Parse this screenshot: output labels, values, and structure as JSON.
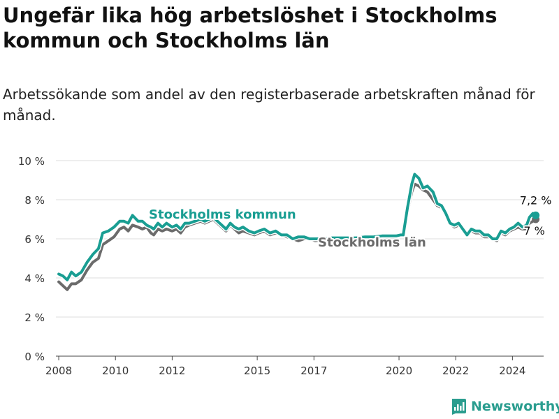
{
  "header": {
    "title": "Ungefär lika hög arbetslöshet i Stockholms kommun och Stockholms län",
    "subtitle": "Arbetssökande som andel av den registerbaserade arbetskraften månad för månad."
  },
  "brand": {
    "name": "Newsworthy"
  },
  "colors": {
    "kommun": "#1a9e93",
    "lan": "#6b6b6b",
    "axis": "#444444",
    "grid": "#dddddd"
  },
  "chart_data": {
    "type": "line",
    "title": "Ungefär lika hög arbetslöshet i Stockholms kommun och Stockholms län",
    "xlabel": "",
    "ylabel": "",
    "xlim": [
      2007.9,
      2025.1
    ],
    "ylim": [
      0,
      10
    ],
    "y_ticks": [
      {
        "value": 0,
        "label": "0 %"
      },
      {
        "value": 2,
        "label": "2 %"
      },
      {
        "value": 4,
        "label": "4 %"
      },
      {
        "value": 6,
        "label": "6 %"
      },
      {
        "value": 8,
        "label": "8 %"
      },
      {
        "value": 10,
        "label": "10 %"
      }
    ],
    "x_ticks": [
      {
        "value": 2008,
        "label": "2008"
      },
      {
        "value": 2010,
        "label": "2010"
      },
      {
        "value": 2012,
        "label": "2012"
      },
      {
        "value": 2015,
        "label": "2015"
      },
      {
        "value": 2017,
        "label": "2017"
      },
      {
        "value": 2020,
        "label": "2020"
      },
      {
        "value": 2022,
        "label": "2022"
      },
      {
        "value": 2024,
        "label": "2024"
      }
    ],
    "grid": "horizontal",
    "series": [
      {
        "name": "Stockholms län",
        "label": "Stockholms län",
        "end_label": "7 %",
        "color": "#6b6b6b",
        "points": [
          [
            2008.0,
            3.8
          ],
          [
            2008.15,
            3.6
          ],
          [
            2008.3,
            3.4
          ],
          [
            2008.45,
            3.7
          ],
          [
            2008.6,
            3.7
          ],
          [
            2008.8,
            3.9
          ],
          [
            2009.0,
            4.4
          ],
          [
            2009.2,
            4.8
          ],
          [
            2009.4,
            5.0
          ],
          [
            2009.55,
            5.7
          ],
          [
            2009.75,
            5.9
          ],
          [
            2009.95,
            6.1
          ],
          [
            2010.15,
            6.5
          ],
          [
            2010.3,
            6.6
          ],
          [
            2010.45,
            6.4
          ],
          [
            2010.6,
            6.7
          ],
          [
            2010.8,
            6.6
          ],
          [
            2010.95,
            6.5
          ],
          [
            2011.1,
            6.6
          ],
          [
            2011.25,
            6.3
          ],
          [
            2011.35,
            6.2
          ],
          [
            2011.5,
            6.5
          ],
          [
            2011.65,
            6.4
          ],
          [
            2011.8,
            6.5
          ],
          [
            2012.0,
            6.4
          ],
          [
            2012.15,
            6.5
          ],
          [
            2012.3,
            6.3
          ],
          [
            2012.45,
            6.6
          ],
          [
            2012.6,
            6.7
          ],
          [
            2012.8,
            6.8
          ],
          [
            2013.0,
            6.9
          ],
          [
            2013.15,
            6.8
          ],
          [
            2013.3,
            6.9
          ],
          [
            2013.45,
            7.0
          ],
          [
            2013.6,
            6.8
          ],
          [
            2013.75,
            6.6
          ],
          [
            2013.9,
            6.4
          ],
          [
            2014.05,
            6.7
          ],
          [
            2014.2,
            6.5
          ],
          [
            2014.35,
            6.3
          ],
          [
            2014.5,
            6.4
          ],
          [
            2014.7,
            6.3
          ],
          [
            2014.9,
            6.2
          ],
          [
            2015.05,
            6.3
          ],
          [
            2015.25,
            6.4
          ],
          [
            2015.45,
            6.2
          ],
          [
            2015.65,
            6.3
          ],
          [
            2015.85,
            6.2
          ],
          [
            2016.05,
            6.1
          ],
          [
            2016.25,
            6.0
          ],
          [
            2016.45,
            5.9
          ],
          [
            2016.65,
            6.0
          ],
          [
            2016.85,
            6.0
          ],
          [
            2017.05,
            5.9
          ],
          [
            2017.3,
            5.95
          ],
          [
            2017.6,
            6.0
          ],
          [
            2017.9,
            6.0
          ],
          [
            2018.2,
            6.0
          ],
          [
            2018.5,
            6.0
          ],
          [
            2018.8,
            6.05
          ],
          [
            2019.1,
            6.05
          ],
          [
            2019.4,
            6.1
          ],
          [
            2019.7,
            6.1
          ],
          [
            2019.9,
            6.1
          ],
          [
            2020.05,
            6.2
          ],
          [
            2020.15,
            6.2
          ],
          [
            2020.3,
            7.4
          ],
          [
            2020.45,
            8.4
          ],
          [
            2020.55,
            8.8
          ],
          [
            2020.7,
            8.7
          ],
          [
            2020.85,
            8.5
          ],
          [
            2021.0,
            8.4
          ],
          [
            2021.2,
            8.0
          ],
          [
            2021.35,
            7.7
          ],
          [
            2021.5,
            7.6
          ],
          [
            2021.65,
            7.2
          ],
          [
            2021.8,
            6.8
          ],
          [
            2021.95,
            6.6
          ],
          [
            2022.1,
            6.7
          ],
          [
            2022.25,
            6.5
          ],
          [
            2022.4,
            6.3
          ],
          [
            2022.55,
            6.4
          ],
          [
            2022.7,
            6.3
          ],
          [
            2022.85,
            6.3
          ],
          [
            2023.0,
            6.1
          ],
          [
            2023.15,
            6.1
          ],
          [
            2023.3,
            6.0
          ],
          [
            2023.45,
            5.9
          ],
          [
            2023.6,
            6.3
          ],
          [
            2023.75,
            6.2
          ],
          [
            2023.9,
            6.4
          ],
          [
            2024.05,
            6.5
          ],
          [
            2024.2,
            6.6
          ],
          [
            2024.35,
            6.5
          ],
          [
            2024.5,
            6.5
          ],
          [
            2024.6,
            6.8
          ],
          [
            2024.72,
            6.9
          ],
          [
            2024.82,
            7.0
          ]
        ]
      },
      {
        "name": "Stockholms kommun",
        "label": "Stockholms kommun",
        "end_label": "7,2 %",
        "color": "#1a9e93",
        "points": [
          [
            2008.0,
            4.2
          ],
          [
            2008.15,
            4.1
          ],
          [
            2008.3,
            3.9
          ],
          [
            2008.45,
            4.3
          ],
          [
            2008.6,
            4.1
          ],
          [
            2008.8,
            4.3
          ],
          [
            2009.0,
            4.8
          ],
          [
            2009.2,
            5.2
          ],
          [
            2009.4,
            5.5
          ],
          [
            2009.55,
            6.3
          ],
          [
            2009.75,
            6.4
          ],
          [
            2009.95,
            6.6
          ],
          [
            2010.15,
            6.9
          ],
          [
            2010.3,
            6.9
          ],
          [
            2010.45,
            6.8
          ],
          [
            2010.6,
            7.2
          ],
          [
            2010.8,
            6.9
          ],
          [
            2010.95,
            6.9
          ],
          [
            2011.1,
            6.7
          ],
          [
            2011.25,
            6.6
          ],
          [
            2011.35,
            6.5
          ],
          [
            2011.5,
            6.8
          ],
          [
            2011.65,
            6.6
          ],
          [
            2011.8,
            6.8
          ],
          [
            2012.0,
            6.6
          ],
          [
            2012.15,
            6.7
          ],
          [
            2012.3,
            6.5
          ],
          [
            2012.45,
            6.8
          ],
          [
            2012.6,
            6.8
          ],
          [
            2012.8,
            6.9
          ],
          [
            2013.0,
            7.0
          ],
          [
            2013.15,
            6.9
          ],
          [
            2013.3,
            7.0
          ],
          [
            2013.45,
            7.1
          ],
          [
            2013.6,
            6.9
          ],
          [
            2013.75,
            6.7
          ],
          [
            2013.9,
            6.5
          ],
          [
            2014.05,
            6.8
          ],
          [
            2014.2,
            6.6
          ],
          [
            2014.35,
            6.5
          ],
          [
            2014.5,
            6.6
          ],
          [
            2014.7,
            6.4
          ],
          [
            2014.9,
            6.3
          ],
          [
            2015.05,
            6.4
          ],
          [
            2015.25,
            6.5
          ],
          [
            2015.45,
            6.3
          ],
          [
            2015.65,
            6.4
          ],
          [
            2015.85,
            6.2
          ],
          [
            2016.05,
            6.2
          ],
          [
            2016.25,
            6.0
          ],
          [
            2016.45,
            6.1
          ],
          [
            2016.65,
            6.1
          ],
          [
            2016.85,
            6.0
          ],
          [
            2017.05,
            6.0
          ],
          [
            2017.3,
            6.0
          ],
          [
            2017.6,
            6.05
          ],
          [
            2017.9,
            6.05
          ],
          [
            2018.2,
            6.05
          ],
          [
            2018.5,
            6.05
          ],
          [
            2018.8,
            6.1
          ],
          [
            2019.1,
            6.1
          ],
          [
            2019.4,
            6.15
          ],
          [
            2019.7,
            6.15
          ],
          [
            2019.9,
            6.15
          ],
          [
            2020.05,
            6.2
          ],
          [
            2020.15,
            6.2
          ],
          [
            2020.3,
            7.6
          ],
          [
            2020.45,
            8.8
          ],
          [
            2020.55,
            9.3
          ],
          [
            2020.7,
            9.1
          ],
          [
            2020.85,
            8.6
          ],
          [
            2021.0,
            8.7
          ],
          [
            2021.2,
            8.4
          ],
          [
            2021.35,
            7.8
          ],
          [
            2021.5,
            7.7
          ],
          [
            2021.65,
            7.3
          ],
          [
            2021.8,
            6.8
          ],
          [
            2021.95,
            6.7
          ],
          [
            2022.1,
            6.8
          ],
          [
            2022.25,
            6.5
          ],
          [
            2022.4,
            6.2
          ],
          [
            2022.55,
            6.5
          ],
          [
            2022.7,
            6.4
          ],
          [
            2022.85,
            6.4
          ],
          [
            2023.0,
            6.2
          ],
          [
            2023.15,
            6.2
          ],
          [
            2023.3,
            6.0
          ],
          [
            2023.45,
            6.0
          ],
          [
            2023.6,
            6.4
          ],
          [
            2023.75,
            6.3
          ],
          [
            2023.9,
            6.5
          ],
          [
            2024.05,
            6.6
          ],
          [
            2024.2,
            6.8
          ],
          [
            2024.35,
            6.6
          ],
          [
            2024.5,
            6.7
          ],
          [
            2024.6,
            7.1
          ],
          [
            2024.72,
            7.3
          ],
          [
            2024.82,
            7.2
          ]
        ]
      }
    ]
  }
}
